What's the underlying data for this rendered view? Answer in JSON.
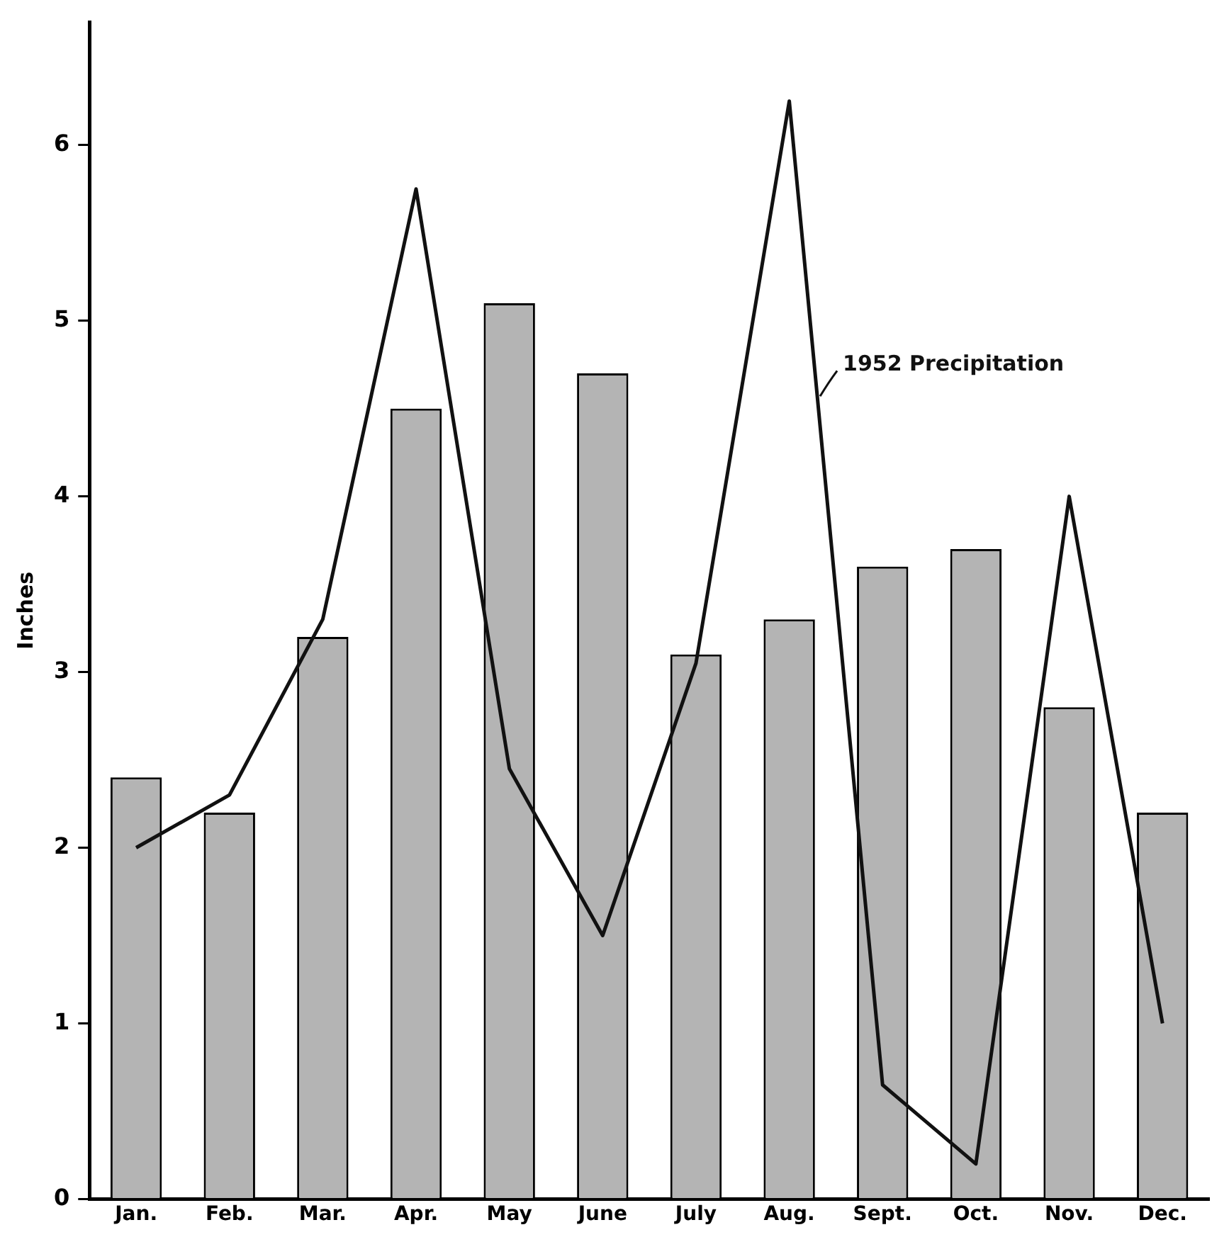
{
  "chart_data": {
    "type": "bar",
    "ylabel": "Inches",
    "categories": [
      "Jan.",
      "Feb.",
      "Mar.",
      "Apr.",
      "May",
      "June",
      "July",
      "Aug.",
      "Sept.",
      "Oct.",
      "Nov.",
      "Dec."
    ],
    "series": [
      {
        "color": "#b4b4b4",
        "values": [
          2.4,
          2.2,
          3.2,
          4.5,
          5.1,
          4.7,
          3.1,
          3.3,
          3.6,
          3.7,
          2.8,
          2.2
        ]
      },
      {
        "type": "line",
        "name": "1952 Precipitation",
        "color": "#111111",
        "values": [
          2.0,
          2.3,
          3.3,
          5.75,
          2.45,
          1.5,
          3.05,
          6.25,
          0.65,
          0.2,
          4.0,
          1.0
        ]
      }
    ],
    "ylim": [
      0,
      6.7
    ],
    "yticks": [
      0,
      1,
      2,
      3,
      4,
      5,
      6
    ],
    "grid": false,
    "legend": false,
    "marker": "none",
    "line_style": "solid"
  }
}
